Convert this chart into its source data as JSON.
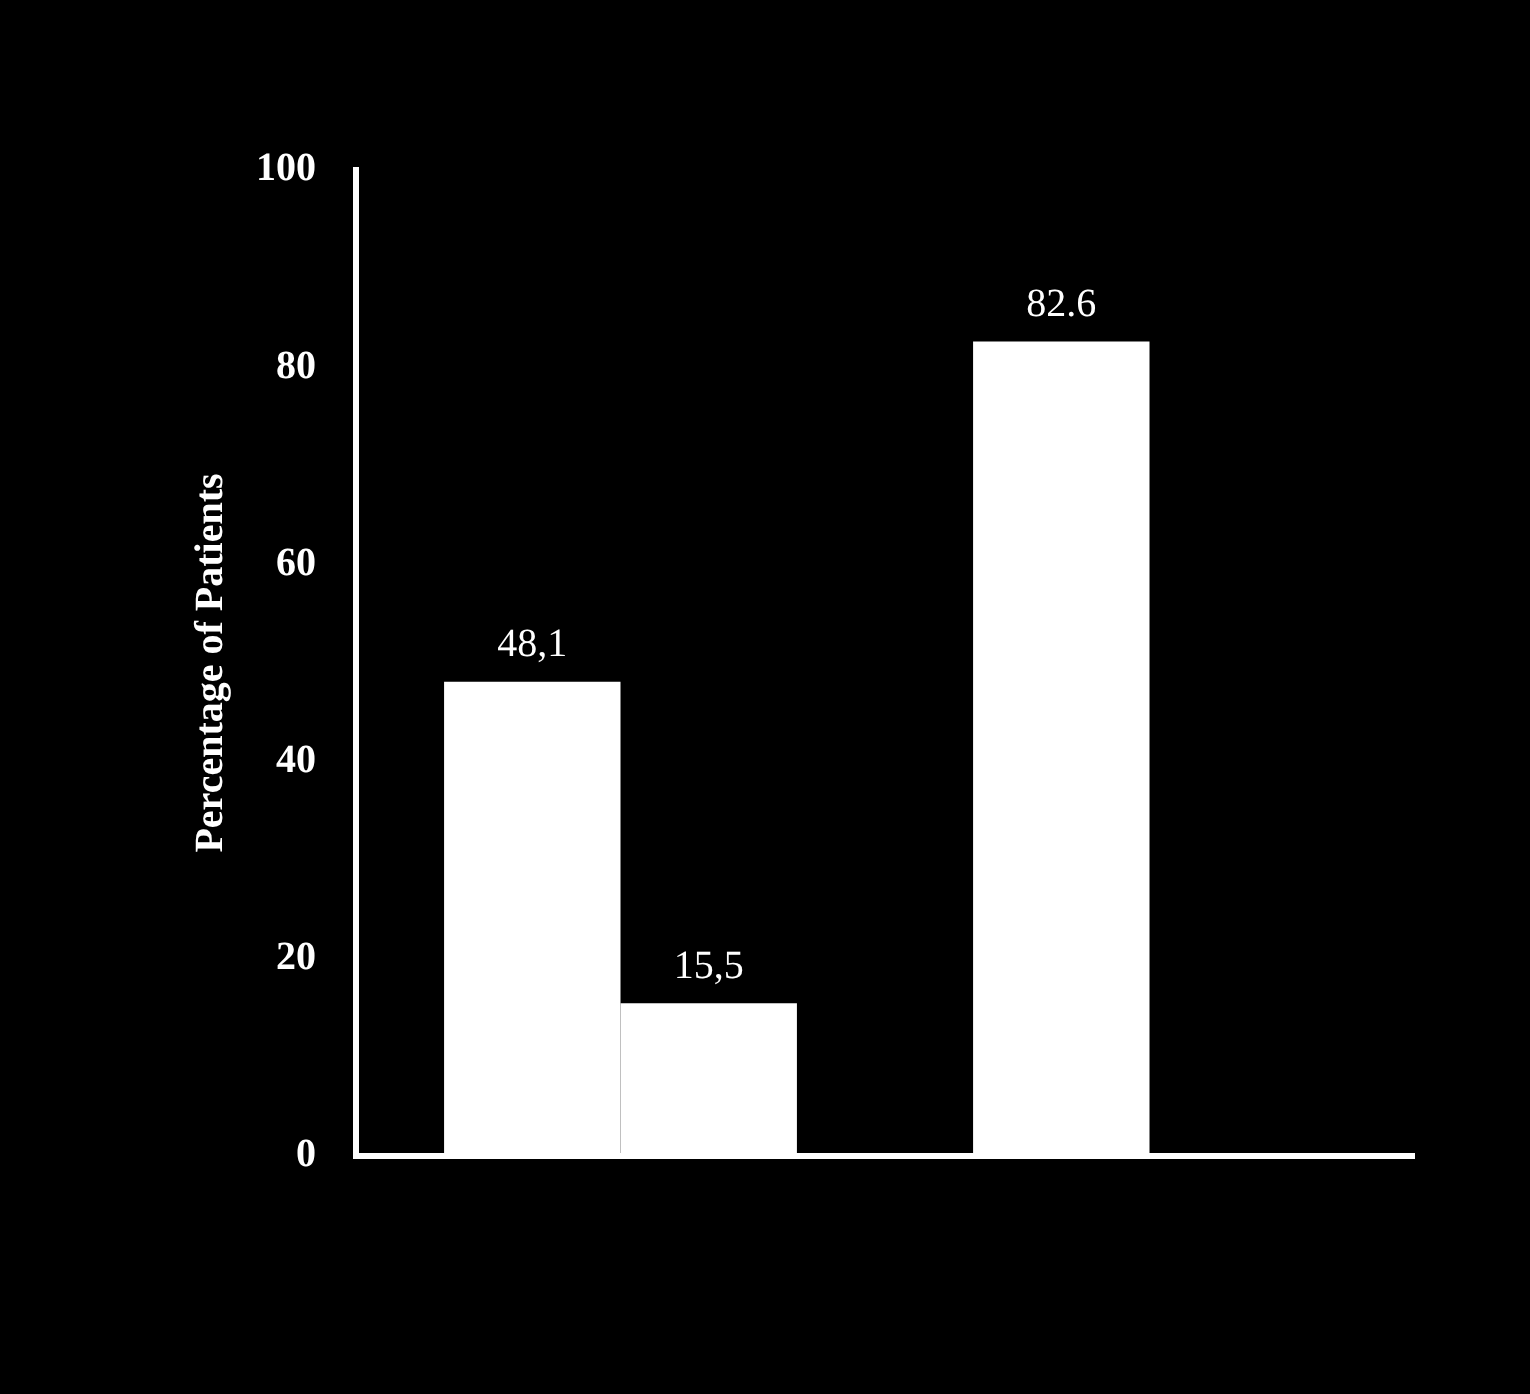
{
  "chart_data": {
    "type": "bar",
    "ylabel": "Percentage of Patients",
    "categories": [
      null,
      null
    ],
    "series": [
      {
        "color": "#ffffff",
        "values": [
          48.1,
          82.6
        ],
        "value_labels": [
          "48,1",
          "82.6"
        ]
      },
      {
        "color": "#ffffff",
        "values": [
          15.5,
          null
        ],
        "value_labels": [
          "15,5",
          null
        ]
      }
    ],
    "ylim": [
      0,
      100
    ],
    "yticks": [
      0,
      20,
      40,
      60,
      80,
      100
    ]
  }
}
